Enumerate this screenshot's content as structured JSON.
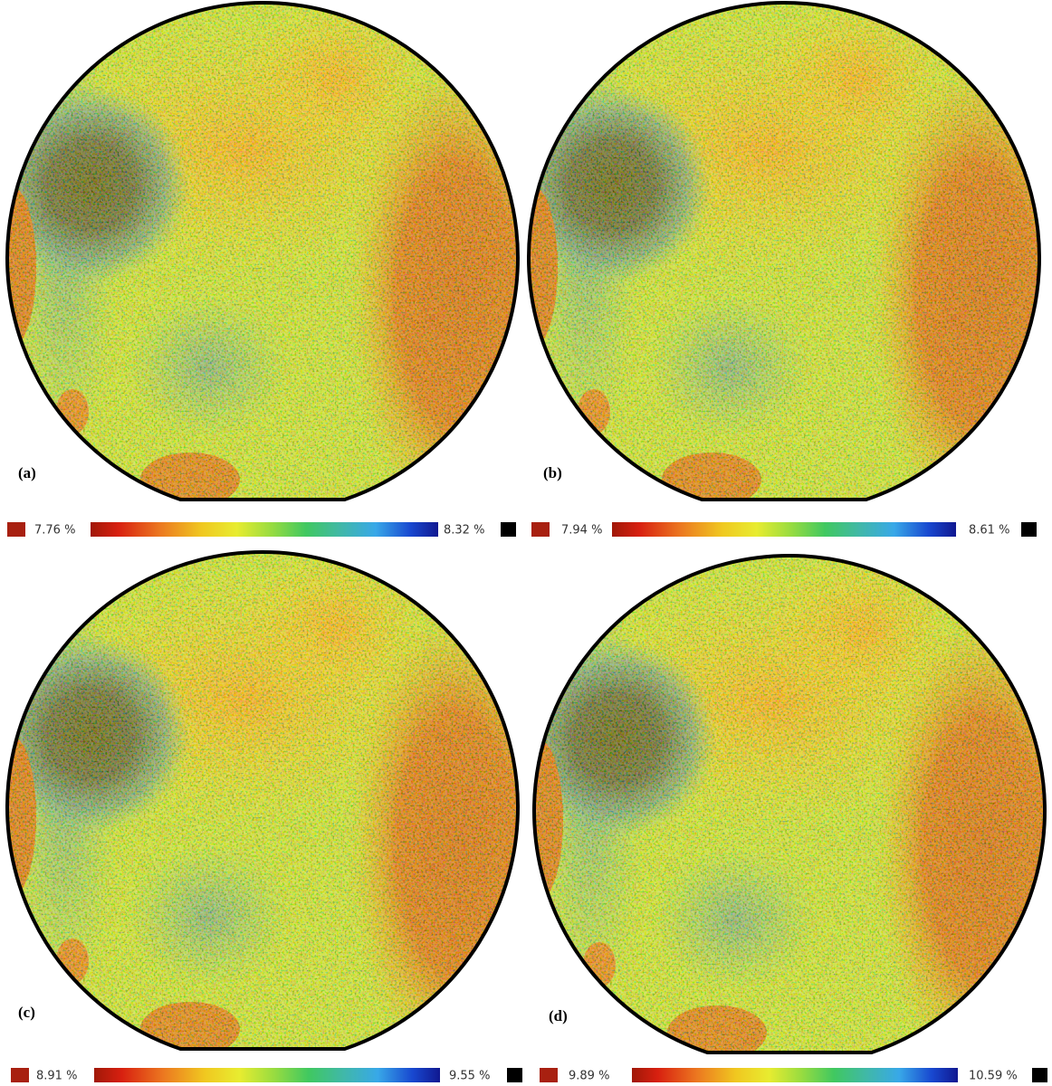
{
  "panels": [
    {
      "label": "(a)",
      "min_label": "7.76 %",
      "max_label": "8.32 %"
    },
    {
      "label": "(b)",
      "min_label": "7.94 %",
      "max_label": "8.61 %"
    },
    {
      "label": "(c)",
      "min_label": "8.91 %",
      "max_label": "9.55 %"
    },
    {
      "label": "(d)",
      "min_label": "9.89 %",
      "max_label": "10.59 %"
    }
  ]
}
